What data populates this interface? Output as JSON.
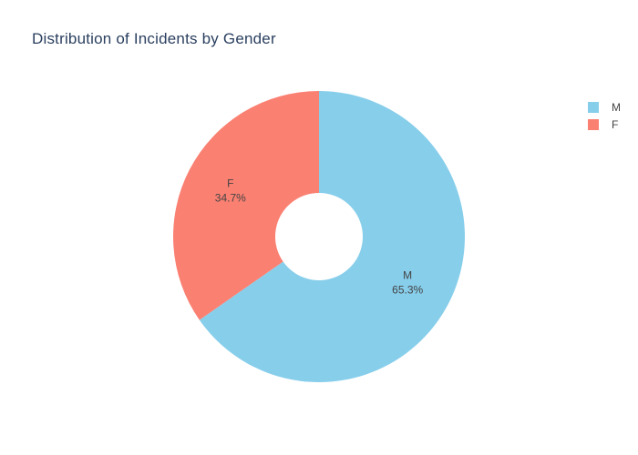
{
  "chart_data": {
    "type": "pie",
    "title": "Distribution of Incidents by Gender",
    "hole": 0.3,
    "rotation_start_deg": 0,
    "direction": "clockwise",
    "slices": [
      {
        "label": "M",
        "percent": 65.3,
        "percent_text": "65.3%",
        "color": "#87CEEB"
      },
      {
        "label": "F",
        "percent": 34.7,
        "percent_text": "34.7%",
        "color": "#FA8072"
      }
    ],
    "legend": {
      "placement": "top-right",
      "entries": [
        {
          "label": "M",
          "color": "#87CEEB"
        },
        {
          "label": "F",
          "color": "#FA8072"
        }
      ]
    }
  }
}
